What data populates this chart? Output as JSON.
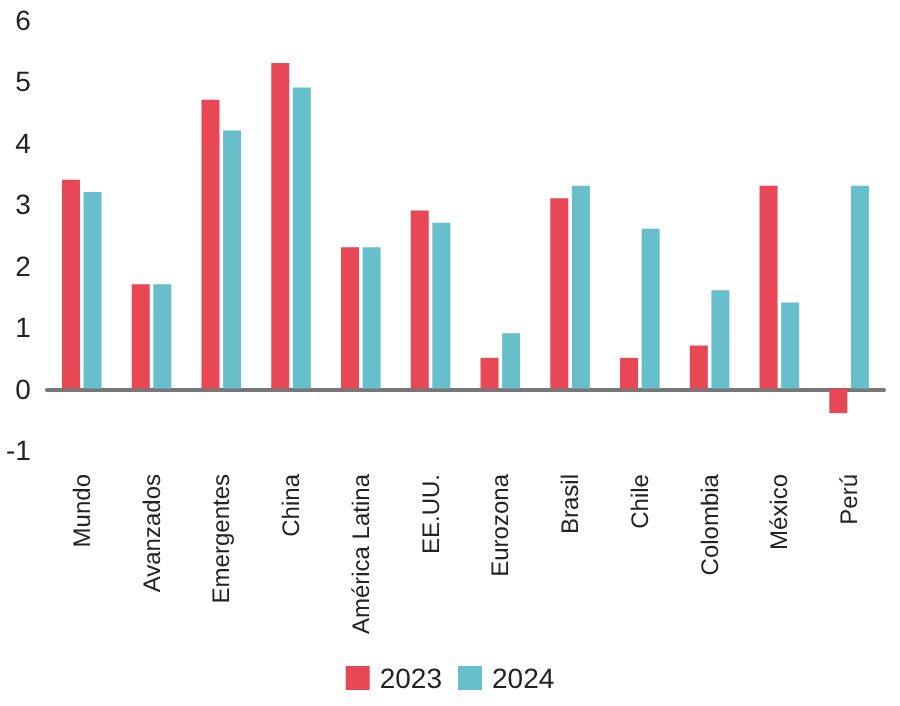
{
  "chart_data": {
    "type": "bar",
    "categories": [
      "Mundo",
      "Avanzados",
      "Emergentes",
      "China",
      "América Latina",
      "EE.UU.",
      "Eurozona",
      "Brasil",
      "Chile",
      "Colombia",
      "México",
      "Perú"
    ],
    "series": [
      {
        "name": "2023",
        "color": "#e84855",
        "values": [
          3.4,
          1.7,
          4.7,
          5.3,
          2.3,
          2.9,
          0.5,
          3.1,
          0.5,
          0.7,
          3.3,
          -0.4
        ]
      },
      {
        "name": "2024",
        "color": "#67bfcb",
        "values": [
          3.2,
          1.7,
          4.2,
          4.9,
          2.3,
          2.7,
          0.9,
          3.3,
          2.6,
          1.6,
          1.4,
          3.3
        ]
      }
    ],
    "ylim": [
      -1,
      6
    ],
    "yticks": [
      -1,
      0,
      1,
      2,
      3,
      4,
      5,
      6
    ],
    "legend": "bottom"
  }
}
